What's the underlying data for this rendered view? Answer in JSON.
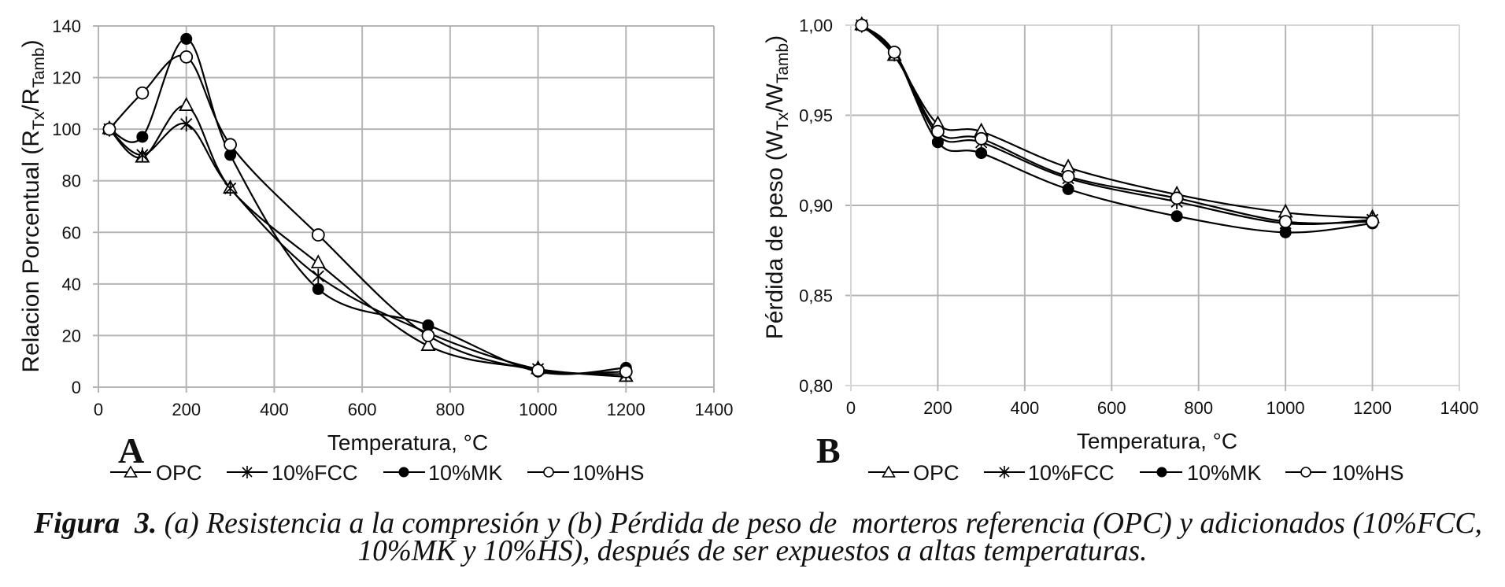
{
  "figure": {
    "caption": {
      "label": "Figura  3.",
      "line1_text": " (a) Resistencia a la compresión y (b) Pérdida de peso de  morteros referencia (OPC) y adicionados (10%FCC,",
      "line2_text": "10%MK y 10%HS), después de ser expuestos a altas temperaturas."
    }
  },
  "chart_data": [
    {
      "panel_label": "A",
      "type": "line",
      "title": "",
      "xlabel": "Temperatura, °C",
      "ylabel": {
        "text": "Relacion Porcentual (R",
        "sub_1": "Tx",
        "mid": "/R",
        "sub_2": "Tamb",
        "end": ")"
      },
      "xlim": [
        0,
        1400
      ],
      "ylim": [
        0,
        140
      ],
      "xticks": [
        0,
        200,
        400,
        600,
        800,
        1000,
        1200,
        1400
      ],
      "xtick_labels": [
        "0",
        "200",
        "400",
        "600",
        "800",
        "1000",
        "1200",
        "1400"
      ],
      "yticks": [
        0,
        20,
        40,
        60,
        80,
        100,
        120,
        140
      ],
      "ytick_labels": [
        "0",
        "20",
        "40",
        "60",
        "80",
        "100",
        "120",
        "140"
      ],
      "grid": true,
      "legend": "bottom",
      "smoothed": true,
      "x": [
        25,
        100,
        200,
        300,
        500,
        750,
        1000,
        1200
      ],
      "series": [
        {
          "name": "OPC",
          "marker": "open-triangle",
          "color": "#000000",
          "values": [
            100,
            89,
            109,
            77,
            48,
            16,
            7,
            4
          ]
        },
        {
          "name": "10%FCC",
          "marker": "star",
          "color": "#000000",
          "values": [
            100,
            90,
            102,
            77,
            43,
            21,
            7,
            5
          ]
        },
        {
          "name": "10%MK",
          "marker": "filled-circle",
          "color": "#000000",
          "values": [
            100,
            97,
            135,
            90,
            38,
            24,
            6,
            7.5
          ]
        },
        {
          "name": "10%HS",
          "marker": "open-circle",
          "color": "#000000",
          "values": [
            100,
            114,
            128,
            94,
            59,
            20,
            6.5,
            6
          ]
        }
      ]
    },
    {
      "panel_label": "B",
      "type": "line",
      "title": "",
      "xlabel": "Temperatura, °C",
      "ylabel": {
        "text": "Pérdida de peso (W",
        "sub_1": "Tx",
        "mid": "/W",
        "sub_2": "Tamb",
        "end": ")"
      },
      "xlim": [
        0,
        1400
      ],
      "ylim": [
        0.8,
        1.0
      ],
      "xticks": [
        0,
        200,
        400,
        600,
        800,
        1000,
        1200,
        1400
      ],
      "xtick_labels": [
        "0",
        "200",
        "400",
        "600",
        "800",
        "1000",
        "1200",
        "1400"
      ],
      "yticks": [
        0.8,
        0.85,
        0.9,
        0.95,
        1.0
      ],
      "ytick_labels": [
        "0,80",
        "0,85",
        "0,90",
        "0,95",
        "1,00"
      ],
      "grid": true,
      "legend": "bottom",
      "smoothed": true,
      "x": [
        25,
        100,
        200,
        300,
        500,
        750,
        1000,
        1200
      ],
      "series": [
        {
          "name": "OPC",
          "marker": "open-triangle",
          "color": "#000000",
          "values": [
            1.0,
            0.983,
            0.945,
            0.941,
            0.921,
            0.906,
            0.896,
            0.893
          ]
        },
        {
          "name": "10%FCC",
          "marker": "star",
          "color": "#000000",
          "values": [
            1.0,
            0.984,
            0.939,
            0.935,
            0.915,
            0.902,
            0.89,
            0.892
          ]
        },
        {
          "name": "10%MK",
          "marker": "filled-circle",
          "color": "#000000",
          "values": [
            1.0,
            0.985,
            0.935,
            0.929,
            0.909,
            0.894,
            0.885,
            0.89
          ]
        },
        {
          "name": "10%HS",
          "marker": "open-circle",
          "color": "#000000",
          "values": [
            1.0,
            0.985,
            0.941,
            0.937,
            0.916,
            0.904,
            0.891,
            0.891
          ]
        }
      ]
    }
  ]
}
